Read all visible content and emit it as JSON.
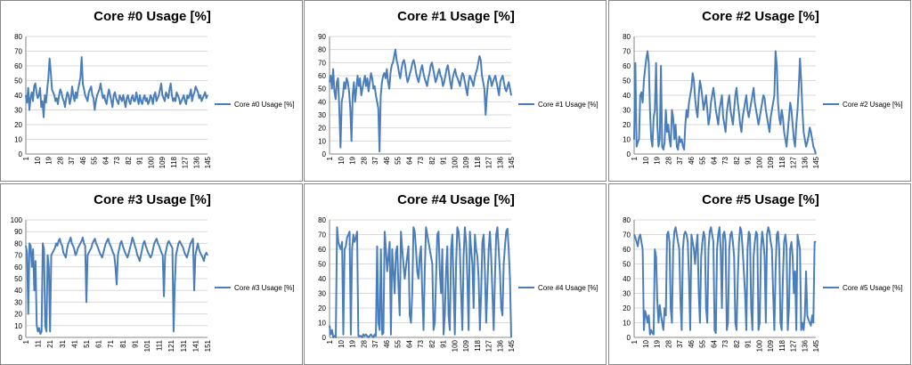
{
  "colors": {
    "series": "#4a7ebb",
    "axis": "#868686",
    "grid": "#d9d9d9",
    "border": "#888888"
  },
  "chart_data": [
    {
      "type": "line",
      "title": "Core #0 Usage [%]",
      "ylim": [
        0,
        80
      ],
      "yticks": [
        0,
        10,
        20,
        30,
        40,
        50,
        60,
        70,
        80
      ],
      "xticks": [
        "1",
        "10",
        "19",
        "28",
        "37",
        "46",
        "55",
        "64",
        "73",
        "82",
        "91",
        "100",
        "109",
        "118",
        "127",
        "136",
        "145"
      ],
      "series": [
        {
          "name": "Core #0 Usage  [%]",
          "values": [
            40,
            35,
            45,
            30,
            38,
            42,
            36,
            46,
            48,
            42,
            38,
            40,
            45,
            32,
            36,
            25,
            40,
            35,
            44,
            52,
            65,
            56,
            44,
            42,
            40,
            36,
            38,
            34,
            40,
            44,
            42,
            38,
            36,
            32,
            38,
            42,
            40,
            34,
            38,
            46,
            40,
            36,
            42,
            38,
            44,
            48,
            52,
            66,
            48,
            44,
            40,
            38,
            36,
            42,
            44,
            46,
            40,
            38,
            30,
            36,
            40,
            42,
            44,
            48,
            42,
            38,
            40,
            36,
            34,
            40,
            44,
            40,
            36,
            32,
            40,
            42,
            38,
            36,
            34,
            40,
            38,
            36,
            40,
            36,
            32,
            38,
            40,
            36,
            34,
            38,
            40,
            36,
            36,
            42,
            38,
            34,
            40,
            36,
            34,
            38,
            40,
            36,
            38,
            34,
            36,
            40,
            38,
            34,
            40,
            42,
            36,
            38,
            40,
            44,
            48,
            40,
            38,
            36,
            42,
            40,
            38,
            44,
            48,
            40,
            36,
            38,
            36,
            42,
            40,
            38,
            34,
            36,
            38,
            40,
            36,
            34,
            40,
            38,
            40,
            44,
            36,
            40,
            42,
            46,
            44,
            42,
            38,
            40,
            36,
            38,
            40,
            42,
            38,
            40
          ]
        }
      ]
    },
    {
      "type": "line",
      "title": "Core #1 Usage [%]",
      "ylim": [
        0,
        90
      ],
      "yticks": [
        0,
        10,
        20,
        30,
        40,
        50,
        60,
        70,
        80,
        90
      ],
      "xticks": [
        "1",
        "10",
        "19",
        "28",
        "37",
        "46",
        "55",
        "64",
        "73",
        "82",
        "91",
        "100",
        "109",
        "118",
        "127",
        "136",
        "145"
      ],
      "series": [
        {
          "name": "Core #1 Usage  [%]",
          "values": [
            55,
            60,
            50,
            65,
            48,
            42,
            55,
            58,
            35,
            5,
            40,
            45,
            55,
            50,
            58,
            55,
            48,
            35,
            10,
            45,
            55,
            40,
            50,
            60,
            52,
            58,
            45,
            50,
            55,
            60,
            52,
            58,
            48,
            55,
            62,
            58,
            50,
            52,
            45,
            40,
            35,
            2,
            45,
            55,
            60,
            62,
            58,
            65,
            55,
            50,
            62,
            68,
            70,
            75,
            80,
            72,
            68,
            62,
            58,
            65,
            70,
            72,
            68,
            60,
            55,
            58,
            62,
            65,
            70,
            72,
            68,
            62,
            58,
            55,
            60,
            65,
            68,
            62,
            58,
            55,
            52,
            58,
            62,
            68,
            70,
            65,
            60,
            55,
            58,
            62,
            65,
            60,
            58,
            52,
            55,
            60,
            65,
            68,
            62,
            55,
            50,
            58,
            62,
            65,
            60,
            58,
            55,
            52,
            58,
            62,
            60,
            55,
            50,
            45,
            55,
            60,
            58,
            55,
            52,
            58,
            62,
            65,
            70,
            75,
            72,
            60,
            55,
            50,
            30,
            45,
            55,
            60,
            58,
            52,
            55,
            58,
            60,
            55,
            50,
            45,
            55,
            58,
            60,
            55,
            50,
            48,
            52,
            55,
            50,
            45
          ]
        }
      ]
    },
    {
      "type": "line",
      "title": "Core #2 Usage [%]",
      "ylim": [
        0,
        80
      ],
      "yticks": [
        0,
        10,
        20,
        30,
        40,
        50,
        60,
        70,
        80
      ],
      "xticks": [
        "1",
        "10",
        "19",
        "28",
        "37",
        "46",
        "55",
        "64",
        "73",
        "82",
        "91",
        "100",
        "109",
        "118",
        "127",
        "136",
        "145"
      ],
      "series": [
        {
          "name": "Core #2 Usage  [%]",
          "values": [
            10,
            62,
            5,
            8,
            10,
            40,
            42,
            35,
            50,
            58,
            65,
            70,
            62,
            30,
            10,
            5,
            25,
            30,
            62,
            20,
            5,
            10,
            60,
            5,
            3,
            8,
            30,
            15,
            20,
            10,
            5,
            30,
            25,
            10,
            20,
            5,
            3,
            12,
            8,
            10,
            5,
            3,
            20,
            30,
            25,
            35,
            40,
            45,
            55,
            50,
            38,
            30,
            25,
            40,
            50,
            45,
            38,
            30,
            35,
            40,
            30,
            20,
            25,
            35,
            40,
            45,
            38,
            30,
            25,
            20,
            30,
            35,
            40,
            25,
            20,
            15,
            28,
            35,
            40,
            30,
            25,
            20,
            30,
            40,
            45,
            35,
            28,
            20,
            15,
            25,
            30,
            35,
            40,
            30,
            25,
            30,
            35,
            40,
            45,
            35,
            30,
            25,
            20,
            25,
            30,
            35,
            40,
            38,
            30,
            25,
            20,
            15,
            25,
            30,
            35,
            40,
            70,
            60,
            35,
            25,
            20,
            30,
            25,
            15,
            10,
            5,
            15,
            25,
            35,
            30,
            20,
            10,
            5,
            20,
            30,
            45,
            65,
            50,
            30,
            15,
            10,
            5,
            8,
            12,
            18,
            15,
            10,
            5,
            3,
            0
          ]
        }
      ]
    },
    {
      "type": "line",
      "title": "Core #3 Usage [%]",
      "ylim": [
        0,
        100
      ],
      "yticks": [
        0,
        10,
        20,
        30,
        40,
        50,
        60,
        70,
        80,
        90,
        100
      ],
      "xticks": [
        "1",
        "11",
        "21",
        "31",
        "41",
        "51",
        "61",
        "71",
        "81",
        "91",
        "101",
        "111",
        "121",
        "131",
        "141",
        "151"
      ],
      "series": [
        {
          "name": "Core #3 Usage  [%]",
          "values": [
            78,
            72,
            20,
            80,
            78,
            60,
            75,
            40,
            65,
            10,
            5,
            8,
            3,
            5,
            80,
            75,
            10,
            5,
            70,
            60,
            5,
            70,
            72,
            74,
            76,
            80,
            78,
            82,
            84,
            80,
            78,
            72,
            70,
            68,
            75,
            80,
            82,
            85,
            80,
            78,
            75,
            70,
            72,
            76,
            78,
            80,
            82,
            85,
            80,
            78,
            30,
            70,
            72,
            74,
            76,
            80,
            82,
            84,
            80,
            78,
            75,
            72,
            70,
            68,
            72,
            76,
            80,
            82,
            84,
            80,
            78,
            75,
            72,
            70,
            60,
            45,
            70,
            75,
            80,
            82,
            78,
            75,
            72,
            70,
            68,
            72,
            76,
            80,
            85,
            82,
            78,
            75,
            70,
            68,
            65,
            70,
            75,
            80,
            82,
            78,
            75,
            72,
            70,
            68,
            70,
            75,
            80,
            82,
            84,
            80,
            78,
            75,
            72,
            70,
            35,
            70,
            75,
            80,
            82,
            80,
            78,
            76,
            5,
            45,
            70,
            75,
            80,
            82,
            80,
            78,
            76,
            72,
            70,
            68,
            72,
            76,
            80,
            82,
            84,
            40,
            70,
            75,
            80,
            75,
            72,
            70,
            68,
            65,
            70,
            72,
            70
          ]
        }
      ]
    },
    {
      "type": "line",
      "title": "Core #4 Usage [%]",
      "ylim": [
        0,
        80
      ],
      "yticks": [
        0,
        10,
        20,
        30,
        40,
        50,
        60,
        70,
        80
      ],
      "xticks": [
        "1",
        "10",
        "19",
        "28",
        "37",
        "46",
        "55",
        "64",
        "73",
        "82",
        "91",
        "100",
        "109",
        "118",
        "127",
        "136",
        "145"
      ],
      "series": [
        {
          "name": "Core #4 Usage  [%]",
          "values": [
            8,
            2,
            5,
            0,
            1,
            0,
            75,
            65,
            62,
            60,
            65,
            2,
            60,
            62,
            68,
            70,
            72,
            2,
            60,
            70,
            65,
            68,
            72,
            1,
            1,
            1,
            0,
            2,
            1,
            2,
            1,
            0,
            1,
            2,
            1,
            0,
            2,
            1,
            62,
            10,
            5,
            60,
            2,
            3,
            72,
            60,
            45,
            55,
            65,
            2,
            60,
            45,
            30,
            58,
            62,
            35,
            15,
            72,
            60,
            50,
            40,
            48,
            55,
            62,
            15,
            10,
            30,
            75,
            72,
            60,
            45,
            40,
            55,
            62,
            30,
            5,
            45,
            75,
            70,
            65,
            60,
            55,
            50,
            5,
            10,
            40,
            70,
            72,
            45,
            30,
            60,
            2,
            15,
            45,
            62,
            15,
            5,
            60,
            70,
            35,
            2,
            50,
            75,
            72,
            60,
            30,
            5,
            55,
            75,
            65,
            40,
            5,
            72,
            60,
            50,
            20,
            70,
            60,
            55,
            40,
            5,
            30,
            65,
            70,
            45,
            10,
            35,
            60,
            72,
            55,
            30,
            5,
            40,
            70,
            75,
            60,
            45,
            20,
            15,
            50,
            62,
            72,
            74,
            60,
            40,
            0
          ]
        }
      ]
    },
    {
      "type": "line",
      "title": "Core #5 Usage [%]",
      "ylim": [
        0,
        80
      ],
      "yticks": [
        0,
        10,
        20,
        30,
        40,
        50,
        60,
        70,
        80
      ],
      "xticks": [
        "1",
        "10",
        "19",
        "28",
        "37",
        "46",
        "55",
        "64",
        "73",
        "82",
        "91",
        "100",
        "109",
        "118",
        "127",
        "136",
        "145"
      ],
      "series": [
        {
          "name": "Core #5 Usage  [%]",
          "values": [
            70,
            68,
            65,
            62,
            68,
            70,
            65,
            60,
            5,
            18,
            15,
            10,
            15,
            2,
            5,
            3,
            2,
            60,
            55,
            25,
            10,
            22,
            15,
            10,
            5,
            20,
            15,
            70,
            72,
            65,
            20,
            10,
            60,
            72,
            75,
            70,
            65,
            60,
            25,
            5,
            60,
            70,
            72,
            70,
            65,
            40,
            5,
            70,
            65,
            60,
            50,
            62,
            70,
            30,
            10,
            55,
            65,
            72,
            68,
            20,
            10,
            60,
            72,
            75,
            70,
            65,
            5,
            3,
            60,
            70,
            75,
            60,
            20,
            70,
            72,
            65,
            5,
            10,
            60,
            70,
            72,
            65,
            55,
            10,
            5,
            40,
            65,
            75,
            72,
            60,
            45,
            30,
            5,
            60,
            72,
            70,
            20,
            5,
            55,
            65,
            72,
            70,
            5,
            10,
            60,
            72,
            65,
            55,
            10,
            70,
            75,
            72,
            65,
            60,
            30,
            5,
            45,
            70,
            72,
            60,
            10,
            5,
            40,
            65,
            70,
            62,
            5,
            20,
            60,
            65,
            55,
            30,
            45,
            5,
            70,
            65,
            60,
            5,
            10,
            5,
            15,
            45,
            15,
            12,
            10,
            8,
            15,
            10,
            65,
            65
          ]
        }
      ]
    }
  ]
}
